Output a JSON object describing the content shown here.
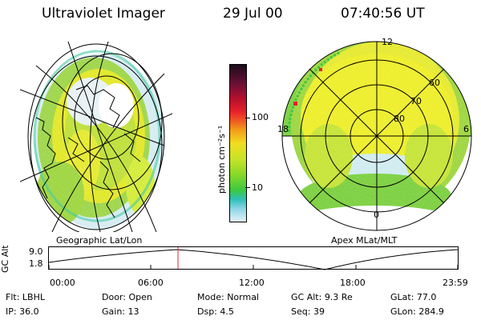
{
  "header": {
    "instrument": "Ultraviolet Imager",
    "date": "29 Jul 00",
    "time": "07:40:56 UT"
  },
  "geo_panel": {
    "label": "Geographic Lat/Lon"
  },
  "polar_panel": {
    "label": "Apex MLat/MLT",
    "mlt_labels": [
      "12",
      "18",
      "6",
      "0"
    ],
    "lat_labels": [
      "60",
      "70",
      "80"
    ]
  },
  "colorbar": {
    "unit_label": "photon cm⁻²s⁻¹",
    "ticks": [
      "100",
      "10"
    ],
    "colors": [
      "#1a0d1a",
      "#6a1038",
      "#b8102c",
      "#e8202a",
      "#f06820",
      "#f4a018",
      "#f2dc20",
      "#c8e428",
      "#88d828",
      "#3cc840",
      "#30c0b8",
      "#8fd6e8",
      "#e6f2f8"
    ]
  },
  "altitude_plot": {
    "ylabel": "GC Alt",
    "y_ticks": [
      "9.0",
      "1.8"
    ],
    "x_ticks": [
      "00:00",
      "06:00",
      "12:00",
      "18:00",
      "23:59"
    ]
  },
  "info_rows": [
    [
      {
        "k": "Flt:",
        "v": "LBHL"
      },
      {
        "k": "Door:",
        "v": "Open"
      },
      {
        "k": "Mode:",
        "v": "Normal"
      },
      {
        "k": "GC Alt:",
        "v": "9.3 Re"
      },
      {
        "k": "GLat:",
        "v": "77.0"
      }
    ],
    [
      {
        "k": "IP:",
        "v": "36.0"
      },
      {
        "k": "Gain:",
        "v": "13"
      },
      {
        "k": "Dsp:",
        "v": "4.5"
      },
      {
        "k": "Seq:",
        "v": "39"
      },
      {
        "k": "GLon:",
        "v": "284.9"
      }
    ]
  ]
}
